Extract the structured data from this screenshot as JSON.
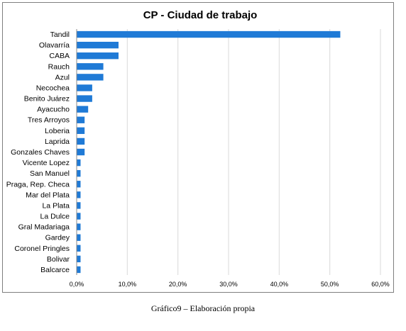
{
  "caption": "Gráfico9 – Elaboración propia",
  "colors": {
    "bar": "#1f7ad6",
    "grid": "#d9d9d9",
    "axis": "#888888"
  },
  "chart_data": {
    "type": "bar",
    "orientation": "horizontal",
    "title": "CP - Ciudad de trabajo",
    "xlabel": "",
    "ylabel": "",
    "xlim": [
      0,
      60
    ],
    "xticks": [
      "0,0%",
      "10,0%",
      "20,0%",
      "30,0%",
      "40,0%",
      "50,0%",
      "60,0%"
    ],
    "grid": "vertical",
    "legend": "none",
    "categories": [
      "Tandil",
      "Olavarría",
      "CABA",
      "Rauch",
      "Azul",
      "Necochea",
      "Benito Juárez",
      "Ayacucho",
      "Tres Arroyos",
      "Loberia",
      "Laprida",
      "Gonzales Chaves",
      "Vicente Lopez",
      "San Manuel",
      "Praga, Rep. Checa",
      "Mar del Plata",
      "La Plata",
      "La Dulce",
      "Gral Madariaga",
      "Gardey",
      "Coronel Pringles",
      "Bolivar",
      "Balcarce"
    ],
    "values": [
      52.0,
      8.2,
      8.2,
      5.2,
      5.2,
      3.0,
      3.0,
      2.2,
      1.5,
      1.5,
      1.5,
      1.5,
      0.7,
      0.7,
      0.7,
      0.7,
      0.7,
      0.7,
      0.7,
      0.7,
      0.7,
      0.7,
      0.7
    ]
  }
}
